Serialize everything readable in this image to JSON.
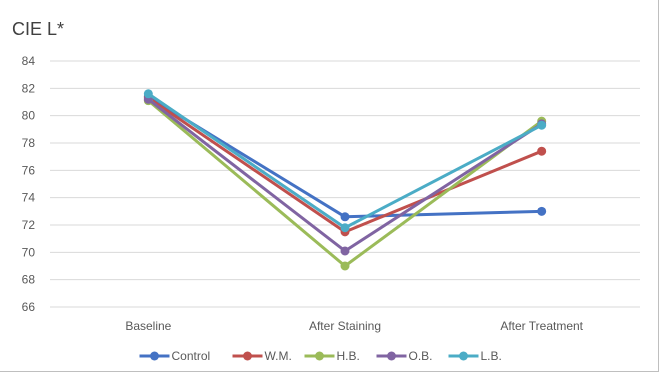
{
  "chart_data": {
    "type": "line",
    "title": "CIE L*",
    "xlabel": "",
    "ylabel": "",
    "categories": [
      "Baseline",
      "After Staining",
      "After Treatment"
    ],
    "ylim": [
      66,
      84
    ],
    "yticks": [
      66,
      68,
      70,
      72,
      74,
      76,
      78,
      80,
      82,
      84
    ],
    "grid": true,
    "legend_position": "bottom",
    "series": [
      {
        "name": "Control",
        "color": "#4472c4",
        "values": [
          81.4,
          72.6,
          73.0
        ]
      },
      {
        "name": "W.M.",
        "color": "#c0504d",
        "values": [
          81.3,
          71.5,
          77.4
        ]
      },
      {
        "name": "H.B.",
        "color": "#9bbb59",
        "values": [
          81.1,
          69.0,
          79.6
        ]
      },
      {
        "name": "O.B.",
        "color": "#8064a2",
        "values": [
          81.2,
          70.1,
          79.4
        ]
      },
      {
        "name": "L.B.",
        "color": "#4bacc6",
        "values": [
          81.6,
          71.8,
          79.3
        ]
      }
    ]
  }
}
